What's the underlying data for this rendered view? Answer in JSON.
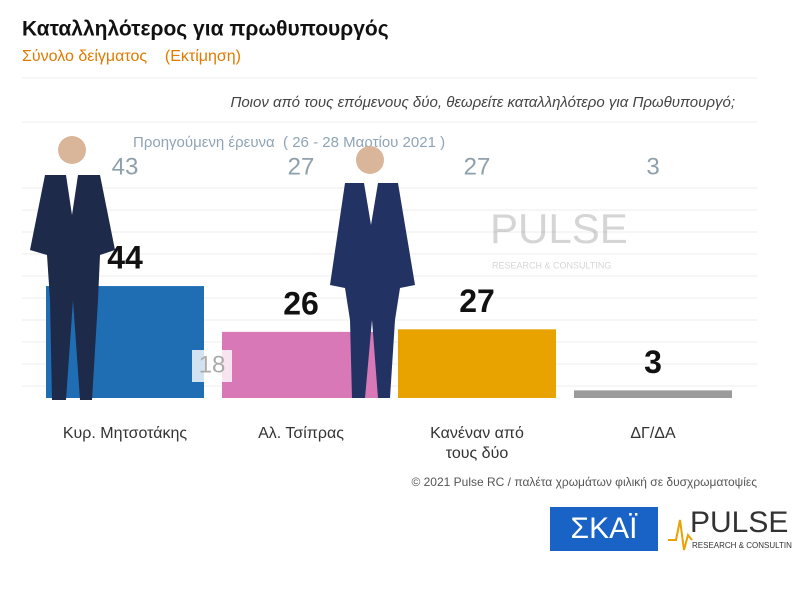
{
  "chart_data": {
    "type": "bar",
    "title": "Καταλληλότερος για πρωθυπουργός",
    "subtitle": "Σύνολο δείγματος    (Εκτίμηση)",
    "question": "Ποιον από τους επόμενους δύο, θεωρείτε καταλληλότερο για Πρωθυπουργό;",
    "categories": [
      "Κυρ. Μητσοτάκης",
      "Αλ. Τσίπρας",
      "Κανέναν από τους δύο",
      "ΔΓ/ΔΑ"
    ],
    "values": [
      44,
      26,
      27,
      3
    ],
    "colors": [
      "#1f6eb3",
      "#d878b6",
      "#e8a300",
      "#9b9b9b"
    ],
    "previous": {
      "label": "Προηγούμενη έρευνα  ( 26 - 28 Μαρτίου 2021 )",
      "values": [
        43,
        27,
        27,
        3
      ]
    },
    "annotation": "18",
    "ylim": [
      0,
      125
    ],
    "footer": "© 2021 Pulse RC  /  παλέτα χρωμάτων φιλική σε δυσχρωματοψίες",
    "logos": {
      "channel": "ΣΚΑΪ",
      "pollster": "PULSE",
      "pollster_tagline": "RESEARCH & CONSULTING"
    }
  }
}
